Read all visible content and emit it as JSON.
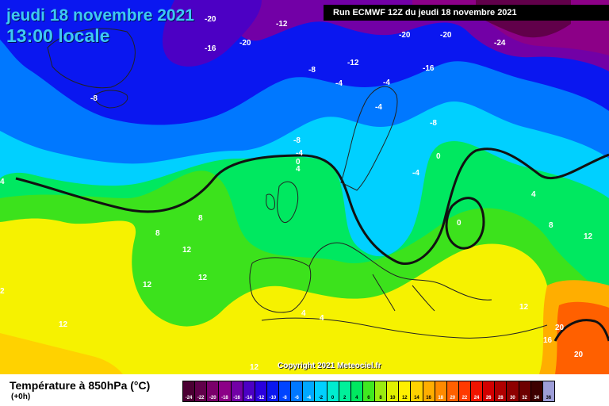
{
  "header": {
    "date_line": "jeudi 18 novembre 2021",
    "time_line": "13:00 locale",
    "run_info": "Run ECMWF 12Z du jeudi 18 novembre 2021"
  },
  "copyright": "Copyright 2021 Meteociel.fr",
  "legend": {
    "title": "Température à 850hPa (°C)",
    "subtitle": "(+0h)",
    "items": [
      {
        "label": "-24",
        "color": "#4b0033"
      },
      {
        "label": "-22",
        "color": "#61004a"
      },
      {
        "label": "-20",
        "color": "#7a006a"
      },
      {
        "label": "-18",
        "color": "#8c0087"
      },
      {
        "label": "-16",
        "color": "#7200a6"
      },
      {
        "label": "-14",
        "color": "#4c00c4"
      },
      {
        "label": "-12",
        "color": "#2a00de"
      },
      {
        "label": "-10",
        "color": "#0a17f0"
      },
      {
        "label": "-8",
        "color": "#0044ff"
      },
      {
        "label": "-6",
        "color": "#0078ff"
      },
      {
        "label": "-4",
        "color": "#00a8ff"
      },
      {
        "label": "-2",
        "color": "#00d0ff"
      },
      {
        "label": "0",
        "color": "#00ecd0"
      },
      {
        "label": "2",
        "color": "#00f09a"
      },
      {
        "label": "4",
        "color": "#00e860"
      },
      {
        "label": "6",
        "color": "#40e820"
      },
      {
        "label": "8",
        "color": "#9aeb10"
      },
      {
        "label": "10",
        "color": "#e0f000"
      },
      {
        "label": "12",
        "color": "#fff000"
      },
      {
        "label": "14",
        "color": "#ffd200"
      },
      {
        "label": "16",
        "color": "#ffae00"
      },
      {
        "label": "18",
        "color": "#ff8a00"
      },
      {
        "label": "20",
        "color": "#ff6000"
      },
      {
        "label": "22",
        "color": "#ff3a00"
      },
      {
        "label": "24",
        "color": "#f01400"
      },
      {
        "label": "26",
        "color": "#d20000"
      },
      {
        "label": "28",
        "color": "#b00000"
      },
      {
        "label": "30",
        "color": "#8e0000"
      },
      {
        "label": "32",
        "color": "#6e0000"
      },
      {
        "label": "34",
        "color": "#3c0000"
      },
      {
        "label": "36",
        "color": "#9e9ed8"
      }
    ]
  },
  "map_labels": [
    {
      "id": "iso-label-1",
      "text": "-20"
    },
    {
      "id": "iso-label-2",
      "text": "-20"
    },
    {
      "id": "iso-label-3",
      "text": "-16"
    },
    {
      "id": "iso-label-4",
      "text": "-12"
    },
    {
      "id": "iso-label-5",
      "text": "-20"
    },
    {
      "id": "iso-label-6",
      "text": "-20"
    },
    {
      "id": "iso-label-7",
      "text": "-24"
    },
    {
      "id": "iso-label-8",
      "text": "-12"
    },
    {
      "id": "iso-label-9",
      "text": "-16"
    },
    {
      "id": "iso-label-10",
      "text": "-8"
    },
    {
      "id": "iso-label-11",
      "text": "-8"
    },
    {
      "id": "iso-label-12",
      "text": "-4"
    },
    {
      "id": "iso-label-13",
      "text": "-4"
    },
    {
      "id": "iso-label-14",
      "text": "-4"
    },
    {
      "id": "iso-label-15",
      "text": "-8"
    },
    {
      "id": "iso-label-16",
      "text": "-8"
    },
    {
      "id": "iso-label-17",
      "text": "-4"
    },
    {
      "id": "iso-label-18",
      "text": "0"
    },
    {
      "id": "iso-label-19",
      "text": "4"
    },
    {
      "id": "iso-label-20",
      "text": "-4"
    },
    {
      "id": "iso-label-21",
      "text": "0"
    },
    {
      "id": "iso-label-22",
      "text": "0"
    },
    {
      "id": "iso-label-23",
      "text": "4"
    },
    {
      "id": "iso-label-24",
      "text": "8"
    },
    {
      "id": "iso-label-25",
      "text": "8"
    },
    {
      "id": "iso-label-26",
      "text": "8"
    },
    {
      "id": "iso-label-27",
      "text": "12"
    },
    {
      "id": "iso-label-28",
      "text": "12"
    },
    {
      "id": "iso-label-29",
      "text": "12"
    },
    {
      "id": "iso-label-30",
      "text": "4"
    },
    {
      "id": "iso-label-31",
      "text": "4"
    },
    {
      "id": "iso-label-32",
      "text": "12"
    },
    {
      "id": "iso-label-33",
      "text": "16"
    },
    {
      "id": "iso-label-34",
      "text": "20"
    },
    {
      "id": "iso-label-35",
      "text": "20"
    },
    {
      "id": "iso-label-36",
      "text": "12"
    },
    {
      "id": "iso-label-37",
      "text": "4"
    },
    {
      "id": "iso-label-38",
      "text": "2"
    },
    {
      "id": "iso-label-39",
      "text": "12"
    },
    {
      "id": "iso-label-40",
      "text": "12"
    }
  ]
}
